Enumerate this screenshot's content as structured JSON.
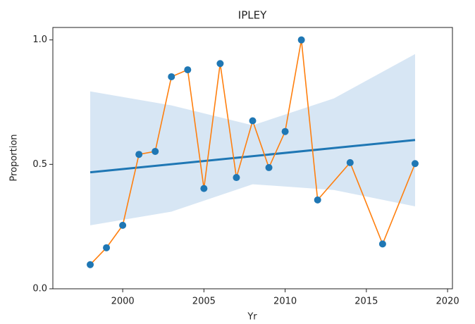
{
  "chart_data": {
    "type": "scatter",
    "title": "IPLEY",
    "x_label": "Yr",
    "y_label": "Proportion",
    "x": [
      1998,
      1999,
      2000,
      2001,
      2002,
      2003,
      2004,
      2005,
      2006,
      2007,
      2008,
      2009,
      2010,
      2011,
      2012,
      2014,
      2016,
      2018
    ],
    "values": [
      0.097,
      0.165,
      0.255,
      0.54,
      0.552,
      0.852,
      0.88,
      0.403,
      0.905,
      0.447,
      0.675,
      0.487,
      0.632,
      1.0,
      0.357,
      0.507,
      0.18,
      0.503
    ],
    "color": "#1f77b4",
    "line_color": "#ff7f0e",
    "regression": {
      "x": [
        1998,
        2018
      ],
      "values": [
        0.468,
        0.598
      ],
      "color": "#1f77b4"
    },
    "band": {
      "x": [
        1998,
        2003,
        2008,
        2013,
        2018
      ],
      "upper": [
        0.793,
        0.737,
        0.657,
        0.765,
        0.943
      ],
      "lower": [
        0.255,
        0.31,
        0.42,
        0.397,
        0.331
      ],
      "color": "#c6dbef"
    },
    "xlim": [
      1995.7,
      2020.3
    ],
    "ylim": [
      0,
      1.05
    ],
    "xticks": [
      2000,
      2005,
      2010,
      2015,
      2020
    ],
    "yticks": [
      {
        "value": 0,
        "label": "0.0"
      },
      {
        "value": 0.5,
        "label": "0.5"
      },
      {
        "value": 1,
        "label": "1.0"
      }
    ]
  }
}
